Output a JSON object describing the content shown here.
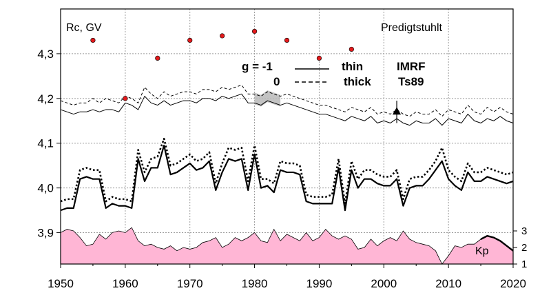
{
  "chart_data": {
    "type": "line",
    "station": "Predigtstuhlt",
    "ylabel": "Rc, GV",
    "xlim": [
      1950,
      2020
    ],
    "ylim": [
      3.83,
      4.4
    ],
    "xticks": [
      "1950",
      "1960",
      "1970",
      "1980",
      "1990",
      "2000",
      "2010",
      "2020"
    ],
    "yticks": [
      "3,9",
      "4,0",
      "4,1",
      "4,2",
      "4,3"
    ],
    "kp_ticks": [
      "1",
      "2",
      "3"
    ],
    "kp_label": "Kp",
    "legend": {
      "row1": {
        "g": "g  = -1",
        "thickness": "thin",
        "model": "IMRF"
      },
      "row2": {
        "g": "0",
        "thickness": "thick",
        "model": "Ts89"
      }
    },
    "colors": {
      "kp_fill": "#ffb6d5",
      "obs_points": "#e31a1c",
      "band": "#b8b8b8"
    },
    "x": [
      1950,
      1951,
      1952,
      1953,
      1954,
      1955,
      1956,
      1957,
      1958,
      1959,
      1960,
      1961,
      1962,
      1963,
      1964,
      1965,
      1966,
      1967,
      1968,
      1969,
      1970,
      1971,
      1972,
      1973,
      1974,
      1975,
      1976,
      1977,
      1978,
      1979,
      1980,
      1981,
      1982,
      1983,
      1984,
      1985,
      1986,
      1987,
      1988,
      1989,
      1990,
      1991,
      1992,
      1993,
      1994,
      1995,
      1996,
      1997,
      1998,
      1999,
      2000,
      2001,
      2002,
      2003,
      2004,
      2005,
      2006,
      2007,
      2008,
      2009,
      2010,
      2011,
      2012,
      2013,
      2014,
      2015,
      2016,
      2017,
      2018,
      2019,
      2020
    ],
    "series": [
      {
        "name": "g=-1 thin IMRF",
        "values": [
          4.175,
          4.17,
          4.165,
          4.17,
          4.17,
          4.175,
          4.17,
          4.175,
          4.175,
          4.17,
          4.19,
          4.185,
          4.175,
          4.205,
          4.19,
          4.185,
          4.195,
          4.185,
          4.19,
          4.195,
          4.195,
          4.19,
          4.2,
          4.2,
          4.195,
          4.205,
          4.2,
          4.205,
          4.21,
          4.19,
          4.19,
          4.185,
          4.195,
          4.19,
          4.185,
          4.19,
          4.185,
          4.18,
          4.175,
          4.17,
          4.165,
          4.165,
          4.16,
          4.155,
          4.15,
          4.16,
          4.155,
          4.15,
          4.16,
          4.145,
          4.15,
          4.145,
          4.155,
          4.145,
          4.14,
          4.15,
          4.145,
          4.145,
          4.155,
          4.14,
          4.155,
          4.15,
          4.145,
          4.165,
          4.15,
          4.145,
          4.155,
          4.15,
          4.16,
          4.15,
          4.145
        ]
      },
      {
        "name": "g=0 thin IMRF",
        "values": [
          4.195,
          4.19,
          4.185,
          4.19,
          4.19,
          4.2,
          4.19,
          4.2,
          4.195,
          4.19,
          4.205,
          4.2,
          4.19,
          4.225,
          4.21,
          4.2,
          4.215,
          4.205,
          4.21,
          4.215,
          4.215,
          4.21,
          4.22,
          4.22,
          4.215,
          4.225,
          4.22,
          4.225,
          4.23,
          4.21,
          4.21,
          4.205,
          4.215,
          4.21,
          4.205,
          4.21,
          4.205,
          4.2,
          4.195,
          4.19,
          4.185,
          4.185,
          4.18,
          4.175,
          4.17,
          4.18,
          4.175,
          4.17,
          4.18,
          4.165,
          4.17,
          4.165,
          4.175,
          4.165,
          4.16,
          4.17,
          4.165,
          4.165,
          4.175,
          4.16,
          4.175,
          4.17,
          4.165,
          4.185,
          4.17,
          4.165,
          4.18,
          4.17,
          4.18,
          4.17,
          4.165
        ]
      },
      {
        "name": "g=-1 thick Ts89",
        "values": [
          3.95,
          3.955,
          3.955,
          4.02,
          4.025,
          4.02,
          4.02,
          3.955,
          3.965,
          3.96,
          3.96,
          3.955,
          4.065,
          4.015,
          4.045,
          4.045,
          4.095,
          4.03,
          4.035,
          4.045,
          4.055,
          4.04,
          4.045,
          4.06,
          3.995,
          4.035,
          4.065,
          4.06,
          4.065,
          3.995,
          4.075,
          4.0,
          4.005,
          3.99,
          4.04,
          4.035,
          4.035,
          4.03,
          3.97,
          3.965,
          3.965,
          3.965,
          3.965,
          4.045,
          3.95,
          4.04,
          4.0,
          4.02,
          4.02,
          4.01,
          4.005,
          4.005,
          4.02,
          3.96,
          4.0,
          4.005,
          4.005,
          4.02,
          4.04,
          4.06,
          4.02,
          4.005,
          3.995,
          4.035,
          4.015,
          4.015,
          4.025,
          4.02,
          4.015,
          4.01,
          4.015
        ]
      },
      {
        "name": "g=0 thick Ts89",
        "values": [
          3.97,
          3.975,
          3.975,
          4.04,
          4.045,
          4.04,
          4.04,
          3.97,
          3.98,
          3.975,
          3.975,
          3.97,
          4.085,
          4.035,
          4.065,
          4.07,
          4.11,
          4.05,
          4.055,
          4.065,
          4.075,
          4.06,
          4.065,
          4.08,
          4.01,
          4.055,
          4.09,
          4.085,
          4.09,
          4.015,
          4.095,
          4.02,
          4.02,
          4.01,
          4.06,
          4.055,
          4.055,
          4.05,
          3.985,
          3.98,
          3.98,
          3.98,
          3.985,
          4.065,
          3.965,
          4.06,
          4.02,
          4.04,
          4.04,
          4.03,
          4.025,
          4.025,
          4.04,
          3.975,
          4.02,
          4.025,
          4.025,
          4.04,
          4.06,
          4.09,
          4.04,
          4.025,
          4.015,
          4.055,
          4.035,
          4.035,
          4.045,
          4.04,
          4.035,
          4.03,
          4.035
        ]
      },
      {
        "name": "observations",
        "x": [
          1955,
          1960,
          1965,
          1970,
          1975,
          1980,
          1985,
          1990,
          1995
        ],
        "values": [
          4.33,
          4.2,
          4.29,
          4.33,
          4.34,
          4.35,
          4.33,
          4.29,
          4.31
        ]
      },
      {
        "name": "Kp",
        "values": [
          2.9,
          3.1,
          3.0,
          2.6,
          2.1,
          2.2,
          2.8,
          2.5,
          2.9,
          3.0,
          2.9,
          3.2,
          2.4,
          2.1,
          2.2,
          2.0,
          1.9,
          2.1,
          1.8,
          2.0,
          1.9,
          2.0,
          2.3,
          2.4,
          2.6,
          2.0,
          2.2,
          2.6,
          2.4,
          2.6,
          2.9,
          2.4,
          2.3,
          3.1,
          2.4,
          2.8,
          2.6,
          2.4,
          2.9,
          2.4,
          2.6,
          3.1,
          2.7,
          2.5,
          2.7,
          2.5,
          1.9,
          2.0,
          2.5,
          2.1,
          2.4,
          2.6,
          2.4,
          3.0,
          2.5,
          2.3,
          2.2,
          2.1,
          1.8,
          1.0,
          1.5,
          2.1,
          2.0,
          2.2,
          2.2,
          2.5,
          2.7,
          2.6,
          2.4,
          2.1,
          1.8
        ]
      }
    ],
    "marker": {
      "year": 2002,
      "value": 4.17,
      "err": 0.025
    },
    "shaded_band": {
      "from": 1980,
      "to": 1984
    }
  }
}
